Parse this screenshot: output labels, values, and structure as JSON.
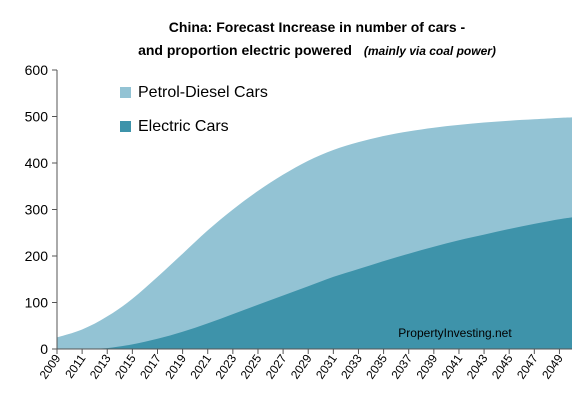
{
  "chart_data": {
    "type": "area",
    "stacked": false,
    "title": "China: Forecast Increase  in number  of cars -",
    "subtitle": "and proportion electric powered",
    "subtitle_note": "(mainly via coal power)",
    "watermark": "PropertyInvesting.net",
    "xlabel": "",
    "ylabel": "",
    "ylim": [
      0,
      600
    ],
    "yticks": [
      0,
      100,
      200,
      300,
      400,
      500,
      600
    ],
    "xlim": [
      2009,
      2050
    ],
    "xticks": [
      2009,
      2011,
      2013,
      2015,
      2017,
      2019,
      2021,
      2023,
      2025,
      2027,
      2029,
      2031,
      2033,
      2035,
      2037,
      2039,
      2041,
      2043,
      2045,
      2047,
      2049
    ],
    "grid": false,
    "legend_position": "top-left",
    "x": [
      2009,
      2011,
      2013,
      2015,
      2017,
      2019,
      2021,
      2023,
      2025,
      2027,
      2029,
      2031,
      2033,
      2035,
      2037,
      2039,
      2041,
      2043,
      2045,
      2047,
      2049,
      2050
    ],
    "series": [
      {
        "name": "Petrol-Diesel Cars",
        "color": "#93c3d4",
        "values": [
          25,
          42,
          70,
          108,
          155,
          205,
          255,
          300,
          340,
          375,
          405,
          428,
          445,
          458,
          468,
          476,
          482,
          487,
          491,
          494,
          497,
          498
        ]
      },
      {
        "name": "Electric Cars",
        "color": "#3e93aa",
        "values": [
          0,
          0,
          2,
          10,
          22,
          37,
          55,
          75,
          95,
          115,
          135,
          155,
          172,
          189,
          205,
          220,
          234,
          246,
          258,
          269,
          279,
          283
        ]
      }
    ]
  }
}
